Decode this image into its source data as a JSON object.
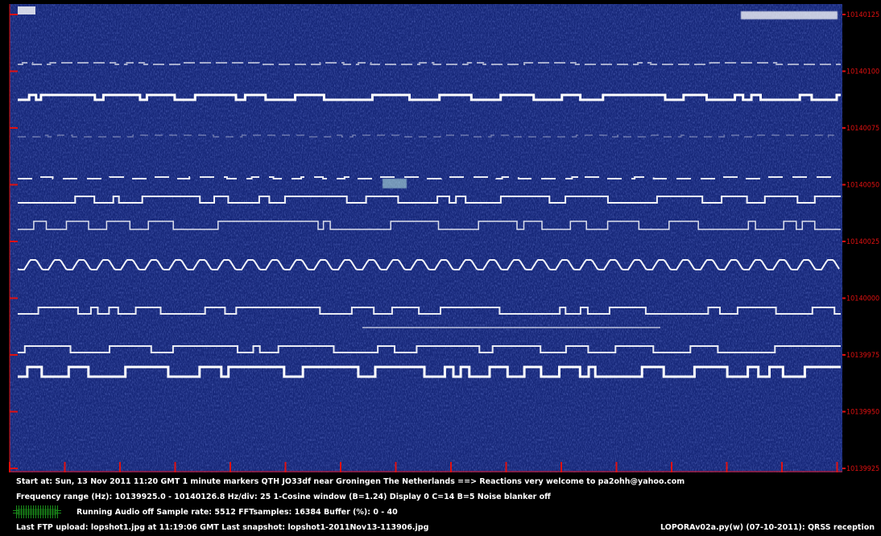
{
  "frequency_labels": [
    "10140125",
    "10140100",
    "10140075",
    "10140050",
    "10140025",
    "10140000",
    "10139975",
    "10139950",
    "10139925"
  ],
  "status_lines": [
    "Start at: Sun, 13 Nov 2011 11:20 GMT    1 minute markers    QTH JO33df near Groningen The Netherlands ==> Reactions very welcome to pa2ohh@yahoo.com",
    "Frequency range (Hz): 10139925.0 - 10140126.8    Hz/div: 25    1-Cosine window (B=1.24)    Display 0    C=14    B=5    Noise blanker off",
    "Running    Audio off    Sample rate: 5512    FFTsamples: 16384    Buffer (%): 0 - 40",
    "Last FTP upload: lopshot1.jpg at 11:19:06 GMT    Last snapshot: lopshot1-2011Nov13-113906.jpg"
  ],
  "status_right": "LOPORAv02a.py(w) (07-10-2011): QRSS reception"
}
